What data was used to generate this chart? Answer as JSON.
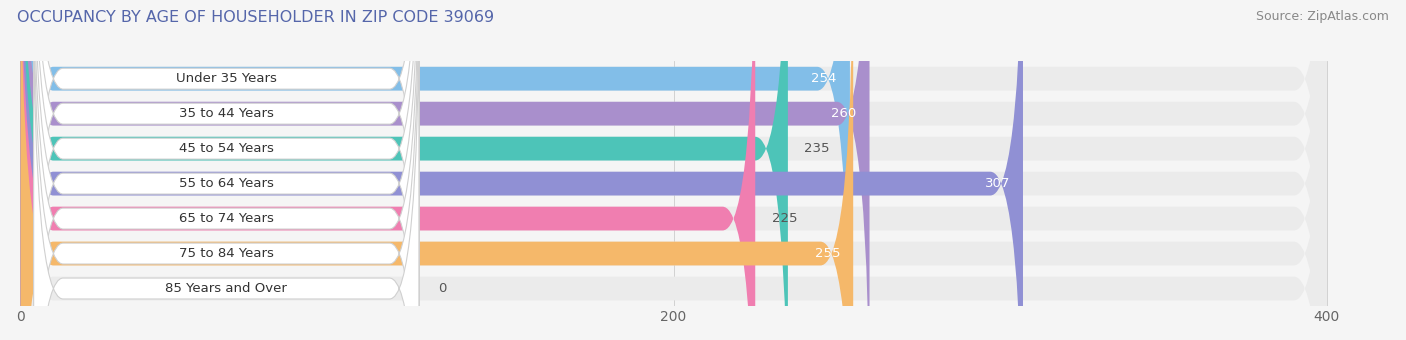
{
  "title": "OCCUPANCY BY AGE OF HOUSEHOLDER IN ZIP CODE 39069",
  "source": "Source: ZipAtlas.com",
  "categories": [
    "Under 35 Years",
    "35 to 44 Years",
    "45 to 54 Years",
    "55 to 64 Years",
    "65 to 74 Years",
    "75 to 84 Years",
    "85 Years and Over"
  ],
  "values": [
    254,
    260,
    235,
    307,
    225,
    255,
    0
  ],
  "bar_colors": [
    "#82BEE8",
    "#A98FCC",
    "#4DC4B8",
    "#9090D4",
    "#F07EB0",
    "#F5B86A",
    "#F5B8B0"
  ],
  "xmax": 400,
  "xticks": [
    0,
    200,
    400
  ],
  "bar_height": 0.68,
  "background_color": "#f5f5f5",
  "row_bg_color": "#ebebeb",
  "label_color_inside": "#ffffff",
  "label_color_outside": "#555555",
  "title_fontsize": 11.5,
  "source_fontsize": 9,
  "value_fontsize": 9.5,
  "tick_fontsize": 10,
  "category_fontsize": 9.5,
  "inside_threshold": 250
}
